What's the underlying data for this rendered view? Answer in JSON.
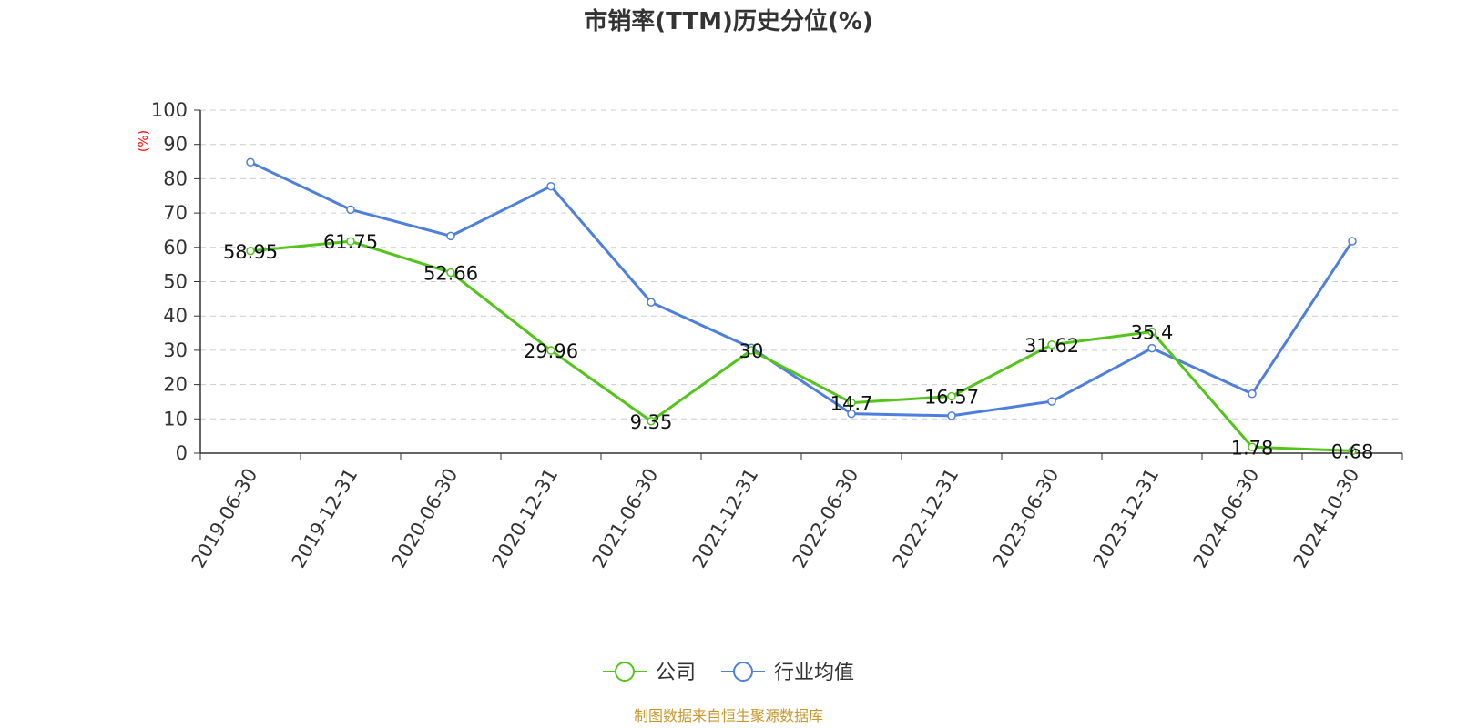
{
  "chart_data": {
    "type": "line",
    "title": "市销率(TTM)历史分位(%)",
    "ylabel": "(%)",
    "xlabel": "",
    "ylim": [
      0,
      100
    ],
    "y_ticks": [
      "0",
      "10",
      "20",
      "30",
      "40",
      "50",
      "60",
      "70",
      "80",
      "90",
      "100"
    ],
    "grid": true,
    "legend_position": "bottom",
    "categories": [
      "2019-06-30",
      "2019-12-31",
      "2020-06-30",
      "2020-12-31",
      "2021-06-30",
      "2021-12-31",
      "2022-06-30",
      "2022-12-31",
      "2023-06-30",
      "2023-12-31",
      "2024-06-30",
      "2024-10-30"
    ],
    "series": [
      {
        "name": "公司",
        "color": "#52c41a",
        "values": [
          58.95,
          61.75,
          52.66,
          29.96,
          9.35,
          30,
          14.7,
          16.57,
          31.62,
          35.4,
          1.78,
          0.68
        ],
        "labels": [
          "58.95",
          "61.75",
          "52.66",
          "29.96",
          "9.35",
          "30",
          "14.7",
          "16.57",
          "31.62",
          "35.4",
          "1.78",
          "0.68"
        ]
      },
      {
        "name": "行业均值",
        "color": "#4e7fdc",
        "values": [
          84.8,
          71,
          63.3,
          77.8,
          44,
          30.7,
          11.5,
          10.9,
          15.1,
          30.6,
          17.3,
          61.8
        ]
      }
    ],
    "source": "制图数据来自恒生聚源数据库"
  }
}
